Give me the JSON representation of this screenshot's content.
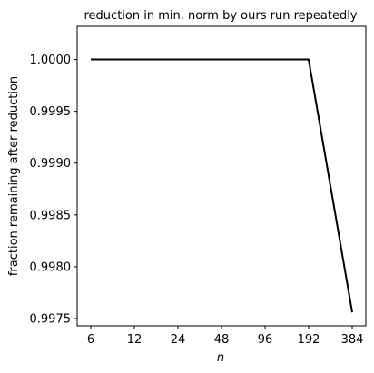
{
  "chart_data": {
    "type": "line",
    "title": "reduction in min. norm by ours run repeatedly",
    "xlabel": "n",
    "ylabel": "fraction remaining after reduction",
    "x_scale": "log2",
    "x": [
      6,
      12,
      24,
      48,
      96,
      192,
      384
    ],
    "x_tick_labels": [
      "6",
      "12",
      "24",
      "48",
      "96",
      "192",
      "384"
    ],
    "y_ticks": [
      0.9975,
      0.998,
      0.9985,
      0.999,
      0.9995,
      1.0
    ],
    "y_tick_labels": [
      "0.9975",
      "0.9980",
      "0.9985",
      "0.9990",
      "0.9995",
      "1.0000"
    ],
    "ylim": [
      0.99743,
      1.00032
    ],
    "grid": false,
    "series": [
      {
        "values": [
          1.0,
          1.0,
          1.0,
          1.0,
          1.0,
          1.0,
          0.99756
        ],
        "color": "#000000"
      }
    ]
  }
}
